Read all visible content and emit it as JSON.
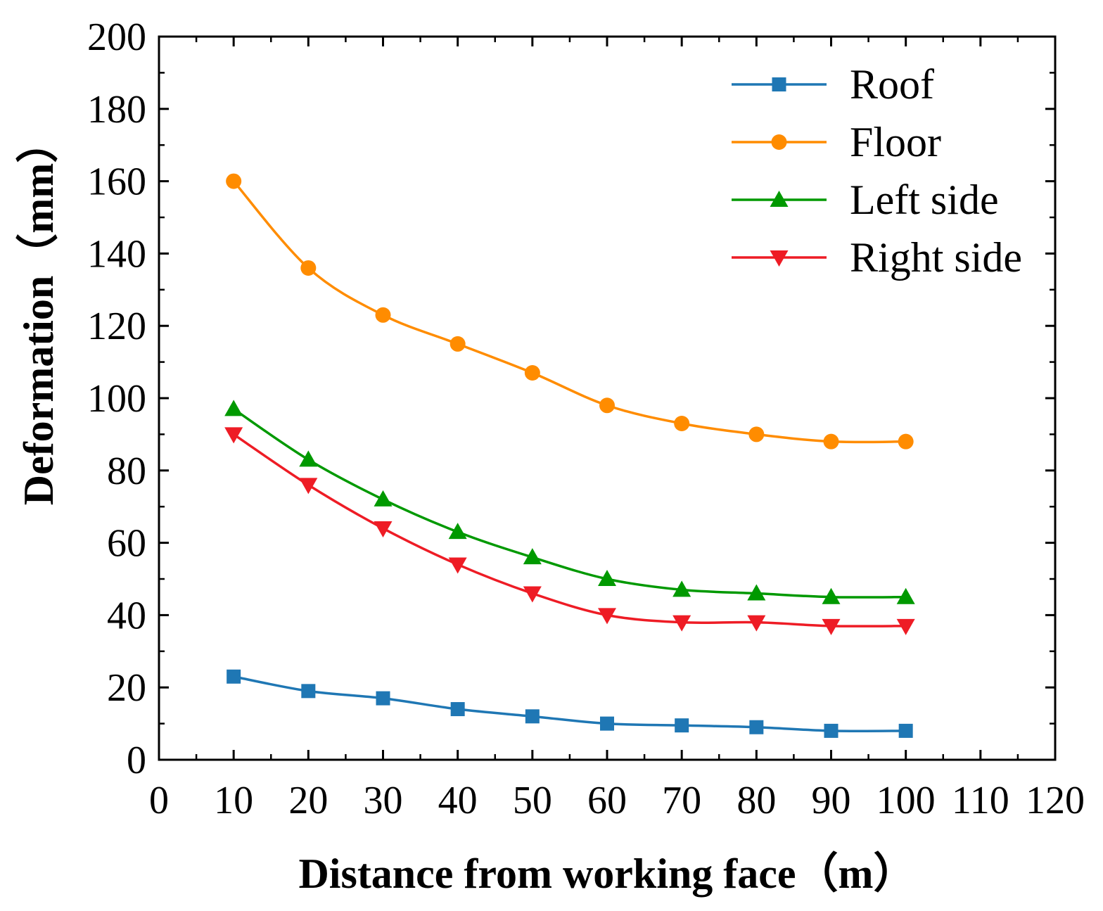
{
  "chart_data": {
    "type": "line",
    "title": "",
    "xlabel": "Distance from working face（m）",
    "ylabel": "Deformation（mm）",
    "xlim": [
      0,
      120
    ],
    "ylim": [
      0,
      200
    ],
    "x_ticks": [
      0,
      10,
      20,
      30,
      40,
      50,
      60,
      70,
      80,
      90,
      100,
      110,
      120
    ],
    "y_ticks": [
      0,
      20,
      40,
      60,
      80,
      100,
      120,
      140,
      160,
      180,
      200
    ],
    "grid": false,
    "legend_position": "top-right",
    "x": [
      10,
      20,
      30,
      40,
      50,
      60,
      70,
      80,
      90,
      100
    ],
    "series": [
      {
        "name": "Roof",
        "color": "#1f77b4",
        "marker": "square",
        "values": [
          23,
          19,
          17,
          14,
          12,
          10,
          9.5,
          9,
          8,
          8
        ]
      },
      {
        "name": "Floor",
        "color": "#ff8c00",
        "marker": "circle",
        "values": [
          160,
          136,
          123,
          115,
          107,
          98,
          93,
          90,
          88,
          88
        ]
      },
      {
        "name": "Left side",
        "color": "#009900",
        "marker": "triangle-up",
        "values": [
          97,
          83,
          72,
          63,
          56,
          50,
          47,
          46,
          45,
          45
        ]
      },
      {
        "name": "Right side",
        "color": "#ee1c25",
        "marker": "triangle-down",
        "values": [
          90,
          76,
          64,
          54,
          46,
          40,
          38,
          38,
          37,
          37
        ]
      }
    ]
  }
}
